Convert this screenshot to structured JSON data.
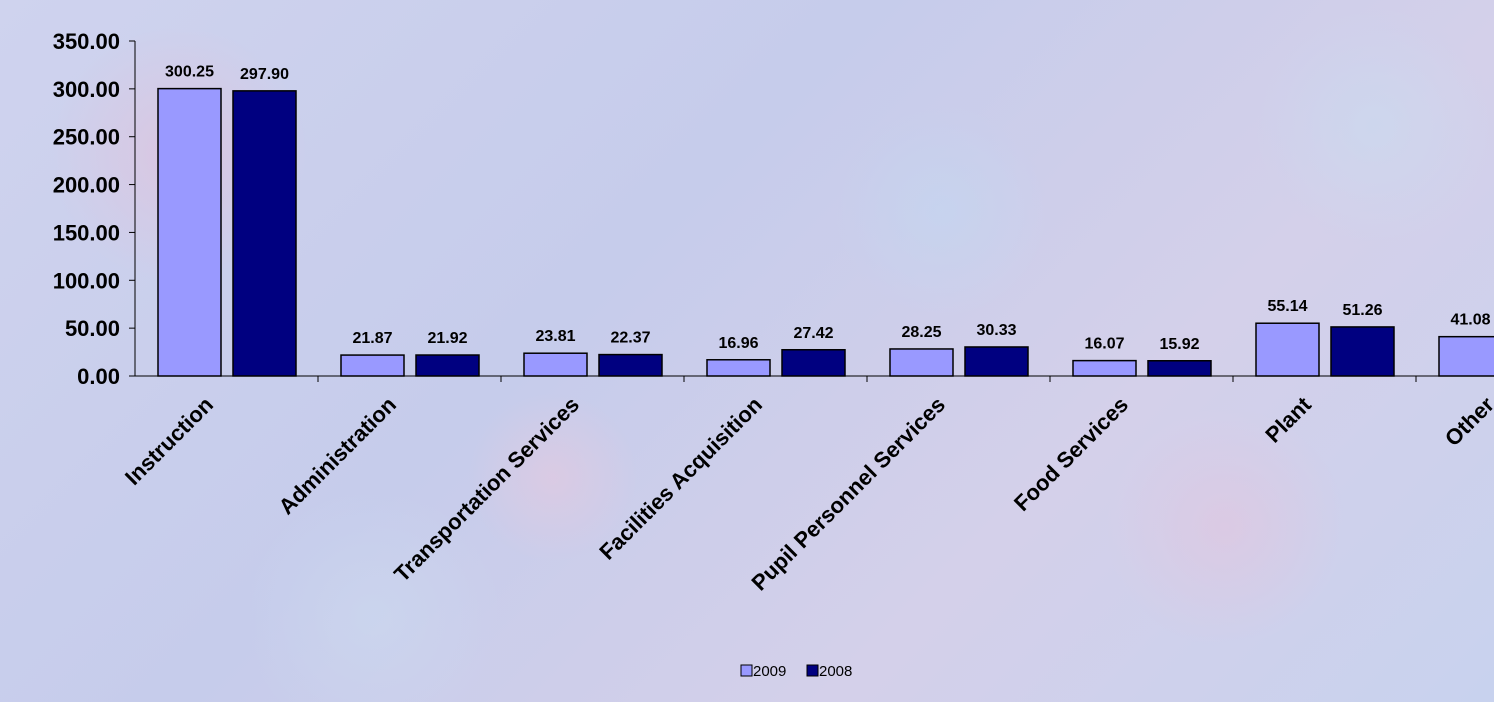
{
  "chart_data": {
    "type": "bar",
    "title": "",
    "xlabel": "",
    "ylabel": "",
    "ylim": [
      0,
      350
    ],
    "yticks": [
      "350.00",
      "300.00",
      "250.00",
      "200.00",
      "150.00",
      "100.00",
      "50.00",
      "0.00"
    ],
    "ytick_values": [
      350,
      300,
      250,
      200,
      150,
      100,
      50,
      0
    ],
    "categories": [
      "Instruction",
      "Administration",
      "Transportation Services",
      "Facilities Acquisition",
      "Pupil Personnel Services",
      "Food Services",
      "Plant",
      "Other"
    ],
    "series": [
      {
        "name": "2009",
        "color": "#9999ff",
        "values": [
          300.25,
          21.87,
          23.81,
          16.96,
          28.25,
          16.07,
          55.14,
          41.08
        ],
        "labels": [
          "300.25",
          "21.87",
          "23.81",
          "16.96",
          "28.25",
          "16.07",
          "55.14",
          "41.08"
        ]
      },
      {
        "name": "2008",
        "color": "#000080",
        "values": [
          297.9,
          21.92,
          22.37,
          27.42,
          30.33,
          15.92,
          51.26,
          null
        ],
        "labels": [
          "297.90",
          "21.92",
          "22.37",
          "27.42",
          "30.33",
          "15.92",
          "51.26",
          ""
        ]
      }
    ],
    "grid": false,
    "legend": "bottom-center"
  }
}
